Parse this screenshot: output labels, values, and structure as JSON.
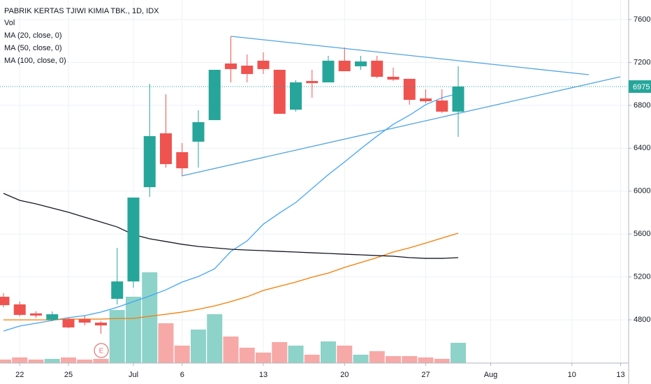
{
  "chart_data": {
    "type": "candlestick",
    "title": "PABRIK KERTAS TJIWI KIMIA TBK., 1D, IDX",
    "categories": [
      null,
      "22",
      null,
      null,
      "25",
      null,
      null,
      null,
      "Jul",
      null,
      null,
      "6",
      null,
      null,
      null,
      null,
      "13",
      null,
      null,
      null,
      null,
      "20",
      null,
      null,
      null,
      null,
      "27",
      null,
      null,
      null,
      "Aug",
      null,
      null,
      null,
      null,
      "10",
      null,
      null,
      "13"
    ],
    "open": [
      5015,
      4944,
      4860,
      4800,
      4807,
      4807,
      4774,
      4996,
      5158,
      6037,
      6539,
      6363,
      6461,
      6662,
      7190,
      7170,
      7216,
      7131,
      6760,
      7027,
      7014,
      7216,
      7164,
      7216,
      7066,
      7047,
      6864,
      6845,
      6741,
      null,
      null,
      null,
      null,
      null,
      null,
      null,
      null,
      null,
      null
    ],
    "high": [
      5048,
      4970,
      4880,
      4878,
      4826,
      4839,
      4787,
      5471,
      5940,
      7001,
      6903,
      6448,
      6754,
      7131,
      7444,
      7274,
      7294,
      7131,
      7034,
      7131,
      7261,
      7340,
      7261,
      7261,
      7151,
      7047,
      6949,
      6949,
      7164,
      null,
      null,
      null,
      null,
      null,
      null,
      null,
      null,
      null,
      null
    ],
    "low": [
      4917,
      4833,
      4820,
      4787,
      4722,
      4748,
      4670,
      4944,
      5100,
      5946,
      6220,
      6142,
      6220,
      6662,
      7014,
      7014,
      7092,
      6721,
      6741,
      6871,
      7014,
      7118,
      7131,
      7053,
      7027,
      6806,
      6819,
      6728,
      6506,
      null,
      null,
      null,
      null,
      null,
      null,
      null,
      null,
      null,
      null
    ],
    "close": [
      4937,
      4846,
      4840,
      4852,
      4729,
      4774,
      4748,
      5158,
      5940,
      6513,
      6252,
      6213,
      6643,
      7131,
      7138,
      7092,
      7138,
      6721,
      7014,
      7007,
      7216,
      7118,
      7209,
      7066,
      7040,
      6851,
      6838,
      6741,
      6975,
      null,
      null,
      null,
      null,
      null,
      null,
      null,
      null,
      null,
      null
    ],
    "up_color": "#26a69a",
    "down_color": "#ef5350",
    "volume": {
      "name": "Vol",
      "up_color": "#8dd3ca",
      "down_color": "#f7a9a7",
      "values": [
        5,
        8,
        5,
        6,
        8,
        5,
        6,
        76,
        95,
        130,
        57,
        25,
        48,
        70,
        38,
        22,
        15,
        30,
        25,
        12,
        31,
        25,
        12,
        17,
        10,
        10,
        8,
        6,
        29,
        null,
        null,
        null,
        null,
        null,
        null,
        null,
        null,
        null,
        null
      ]
    },
    "series": [
      {
        "name": "MA (20, close, 0)",
        "color": "#42a5f5",
        "values": [
          4696,
          4742,
          4768,
          4794,
          4820,
          4839,
          4872,
          4917,
          4970,
          5022,
          5080,
          5152,
          5204,
          5276,
          5438,
          5536,
          5692,
          5796,
          5894,
          6024,
          6154,
          6272,
          6395,
          6513,
          6623,
          6708,
          6806,
          6871,
          6910,
          null,
          null,
          null,
          null,
          null,
          null,
          null,
          null,
          null,
          null
        ]
      },
      {
        "name": "MA (50, close, 0)",
        "color": "#f57c00",
        "values": [
          4800,
          4800,
          4800,
          4800,
          4807,
          4807,
          4807,
          4813,
          4813,
          4833,
          4852,
          4872,
          4898,
          4930,
          4970,
          5015,
          5074,
          5113,
          5152,
          5198,
          5236,
          5289,
          5334,
          5380,
          5432,
          5471,
          5516,
          5562,
          5608,
          null,
          null,
          null,
          null,
          null,
          null,
          null,
          null,
          null,
          null
        ]
      },
      {
        "name": "MA (100, close, 0)",
        "color": "#131722",
        "values": [
          5979,
          5914,
          5881,
          5842,
          5803,
          5757,
          5712,
          5666,
          5595,
          5556,
          5530,
          5504,
          5484,
          5471,
          5458,
          5451,
          5445,
          5438,
          5432,
          5425,
          5419,
          5412,
          5406,
          5399,
          5393,
          5380,
          5373,
          5373,
          5380,
          null,
          null,
          null,
          null,
          null,
          null,
          null,
          null,
          null,
          null
        ]
      }
    ],
    "ylim": [
      4397,
      7782
    ],
    "yticks": [
      4800,
      5200,
      5600,
      6000,
      6400,
      6800,
      7200,
      7600
    ],
    "grid": true,
    "earnings_marker": "E"
  }
}
